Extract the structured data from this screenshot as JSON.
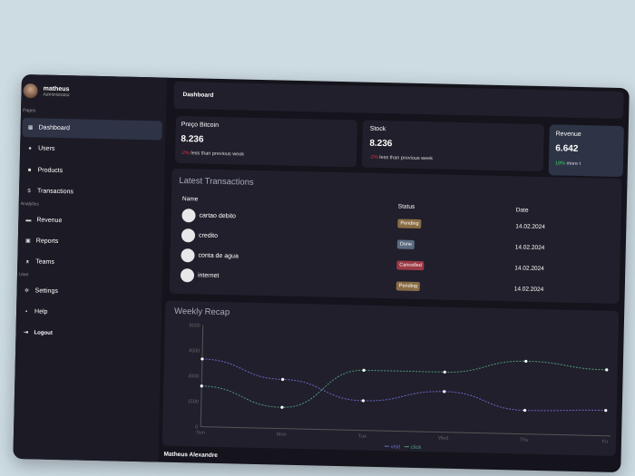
{
  "user": {
    "name": "matheus",
    "role": "Administrator"
  },
  "sidebar": {
    "sections": [
      "Pages",
      "Analytics",
      "User"
    ],
    "items": [
      {
        "label": "Dashboard",
        "icon": "grid-icon"
      },
      {
        "label": "Users",
        "icon": "user-icon"
      },
      {
        "label": "Products",
        "icon": "box-icon"
      },
      {
        "label": "Transactions",
        "icon": "dollar-icon"
      },
      {
        "label": "Revenue",
        "icon": "briefcase-icon"
      },
      {
        "label": "Reports",
        "icon": "report-icon"
      },
      {
        "label": "Teams",
        "icon": "team-icon"
      },
      {
        "label": "Settings",
        "icon": "gear-icon"
      },
      {
        "label": "Help",
        "icon": "help-icon"
      }
    ],
    "logout": "Logout"
  },
  "header": {
    "title": "Dashboard"
  },
  "stats": [
    {
      "label": "Preço Bitcoin",
      "value": "8.236",
      "delta": "-2%",
      "note": "less than previous week"
    },
    {
      "label": "Stock",
      "value": "8.236",
      "delta": "-2%",
      "note": "less than previous week"
    },
    {
      "label": "Revenue",
      "value": "6.642",
      "delta": "18%",
      "note": "more t"
    }
  ],
  "transactions": {
    "title": "Latest Transactions",
    "columns": [
      "Name",
      "Status",
      "Date"
    ],
    "rows": [
      {
        "name": "cartao debito",
        "status": "Pending",
        "date": "14.02.2024"
      },
      {
        "name": "credito",
        "status": "Done",
        "date": "14.02.2024"
      },
      {
        "name": "conta de agua",
        "status": "Cancelled",
        "date": "14.02.2024"
      },
      {
        "name": "internet",
        "status": "Pending",
        "date": "14.02.2024"
      }
    ]
  },
  "status_colors": {
    "Pending": "#8a6d45",
    "Done": "#5b6a80",
    "Cancelled": "#9a3a45"
  },
  "footer": {
    "name": "Matheus Alexandre"
  },
  "chart_data": {
    "type": "line",
    "title": "Weekly Recap",
    "categories": [
      "Sun",
      "Mon",
      "Tue",
      "Wed",
      "Thu",
      "Fri"
    ],
    "ylim": [
      0,
      6000
    ],
    "yticks": [
      "0",
      "1500",
      "3000",
      "4500",
      "6000"
    ],
    "legend_position": "bottom",
    "series": [
      {
        "name": "visit",
        "color": "#6b67c9",
        "values": [
          4000,
          2900,
          1750,
          2400,
          1400,
          1500
        ]
      },
      {
        "name": "click",
        "color": "#4f9a78",
        "values": [
          2400,
          1250,
          3550,
          3550,
          4300,
          3900
        ]
      }
    ]
  }
}
